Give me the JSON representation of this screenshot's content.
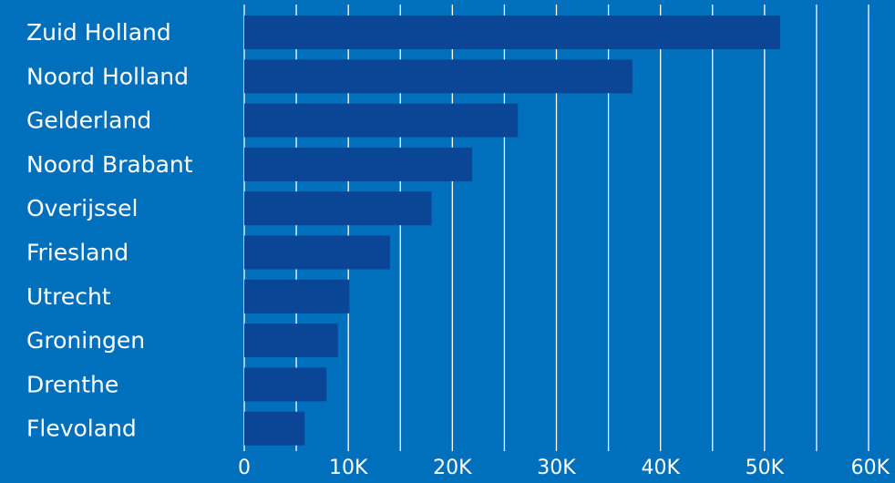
{
  "chart_data": {
    "type": "bar",
    "orientation": "horizontal",
    "categories": [
      "Zuid Holland",
      "Noord Holland",
      "Gelderland",
      "Noord Brabant",
      "Overijssel",
      "Friesland",
      "Utrecht",
      "Groningen",
      "Drenthe",
      "Flevoland"
    ],
    "values": [
      51500,
      37300,
      26300,
      21900,
      18000,
      14000,
      10100,
      9000,
      7900,
      5800
    ],
    "x_ticks": [
      0,
      10000,
      20000,
      30000,
      40000,
      50000,
      60000
    ],
    "x_tick_labels": [
      "0",
      "10K",
      "20K",
      "30K",
      "40K",
      "50K",
      "60K"
    ],
    "xlim": [
      0,
      60000
    ],
    "grid": true,
    "legend": "none",
    "title": "",
    "xlabel": "",
    "ylabel": "",
    "colors": {
      "background": "#0070bc",
      "bar": "#0a4596",
      "grid": "#ffffff",
      "text": "#ffffff"
    }
  }
}
